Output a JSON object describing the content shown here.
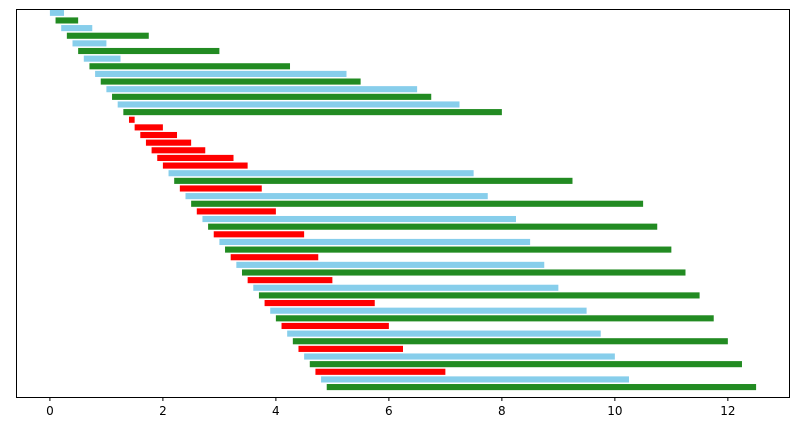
{
  "chart_data": {
    "type": "bar",
    "orientation": "horizontal",
    "title": "",
    "xlabel": "",
    "ylabel": "",
    "xlim": [
      -0.6,
      13.1
    ],
    "xticks": [
      0,
      2,
      4,
      6,
      8,
      10,
      12
    ],
    "y_ticks_shown": false,
    "grid": false,
    "legend": "none",
    "bars": [
      {
        "start": 0.0,
        "end": 0.25,
        "color": "#87ceeb"
      },
      {
        "start": 0.1,
        "end": 0.5,
        "color": "#228b22"
      },
      {
        "start": 0.2,
        "end": 0.75,
        "color": "#87ceeb"
      },
      {
        "start": 0.3,
        "end": 1.75,
        "color": "#228b22"
      },
      {
        "start": 0.4,
        "end": 1.0,
        "color": "#87ceeb"
      },
      {
        "start": 0.5,
        "end": 3.0,
        "color": "#228b22"
      },
      {
        "start": 0.6,
        "end": 1.25,
        "color": "#87ceeb"
      },
      {
        "start": 0.7,
        "end": 4.25,
        "color": "#228b22"
      },
      {
        "start": 0.8,
        "end": 5.25,
        "color": "#87ceeb"
      },
      {
        "start": 0.9,
        "end": 5.5,
        "color": "#228b22"
      },
      {
        "start": 1.0,
        "end": 6.5,
        "color": "#87ceeb"
      },
      {
        "start": 1.1,
        "end": 6.75,
        "color": "#228b22"
      },
      {
        "start": 1.2,
        "end": 7.25,
        "color": "#87ceeb"
      },
      {
        "start": 1.3,
        "end": 8.0,
        "color": "#228b22"
      },
      {
        "start": 1.4,
        "end": 1.5,
        "color": "#ff0000"
      },
      {
        "start": 1.5,
        "end": 2.0,
        "color": "#ff0000"
      },
      {
        "start": 1.6,
        "end": 2.25,
        "color": "#ff0000"
      },
      {
        "start": 1.7,
        "end": 2.5,
        "color": "#ff0000"
      },
      {
        "start": 1.8,
        "end": 2.75,
        "color": "#ff0000"
      },
      {
        "start": 1.9,
        "end": 3.25,
        "color": "#ff0000"
      },
      {
        "start": 2.0,
        "end": 3.5,
        "color": "#ff0000"
      },
      {
        "start": 2.1,
        "end": 7.5,
        "color": "#87ceeb"
      },
      {
        "start": 2.2,
        "end": 9.25,
        "color": "#228b22"
      },
      {
        "start": 2.3,
        "end": 3.75,
        "color": "#ff0000"
      },
      {
        "start": 2.4,
        "end": 7.75,
        "color": "#87ceeb"
      },
      {
        "start": 2.5,
        "end": 10.5,
        "color": "#228b22"
      },
      {
        "start": 2.6,
        "end": 4.0,
        "color": "#ff0000"
      },
      {
        "start": 2.7,
        "end": 8.25,
        "color": "#87ceeb"
      },
      {
        "start": 2.8,
        "end": 10.75,
        "color": "#228b22"
      },
      {
        "start": 2.9,
        "end": 4.5,
        "color": "#ff0000"
      },
      {
        "start": 3.0,
        "end": 8.5,
        "color": "#87ceeb"
      },
      {
        "start": 3.1,
        "end": 11.0,
        "color": "#228b22"
      },
      {
        "start": 3.2,
        "end": 4.75,
        "color": "#ff0000"
      },
      {
        "start": 3.3,
        "end": 8.75,
        "color": "#87ceeb"
      },
      {
        "start": 3.4,
        "end": 11.25,
        "color": "#228b22"
      },
      {
        "start": 3.5,
        "end": 5.0,
        "color": "#ff0000"
      },
      {
        "start": 3.6,
        "end": 9.0,
        "color": "#87ceeb"
      },
      {
        "start": 3.7,
        "end": 11.5,
        "color": "#228b22"
      },
      {
        "start": 3.8,
        "end": 5.75,
        "color": "#ff0000"
      },
      {
        "start": 3.9,
        "end": 9.5,
        "color": "#87ceeb"
      },
      {
        "start": 4.0,
        "end": 11.75,
        "color": "#228b22"
      },
      {
        "start": 4.1,
        "end": 6.0,
        "color": "#ff0000"
      },
      {
        "start": 4.2,
        "end": 9.75,
        "color": "#87ceeb"
      },
      {
        "start": 4.3,
        "end": 12.0,
        "color": "#228b22"
      },
      {
        "start": 4.4,
        "end": 6.25,
        "color": "#ff0000"
      },
      {
        "start": 4.5,
        "end": 10.0,
        "color": "#87ceeb"
      },
      {
        "start": 4.6,
        "end": 12.25,
        "color": "#228b22"
      },
      {
        "start": 4.7,
        "end": 7.0,
        "color": "#ff0000"
      },
      {
        "start": 4.8,
        "end": 10.25,
        "color": "#87ceeb"
      },
      {
        "start": 4.9,
        "end": 12.5,
        "color": "#228b22"
      }
    ]
  }
}
